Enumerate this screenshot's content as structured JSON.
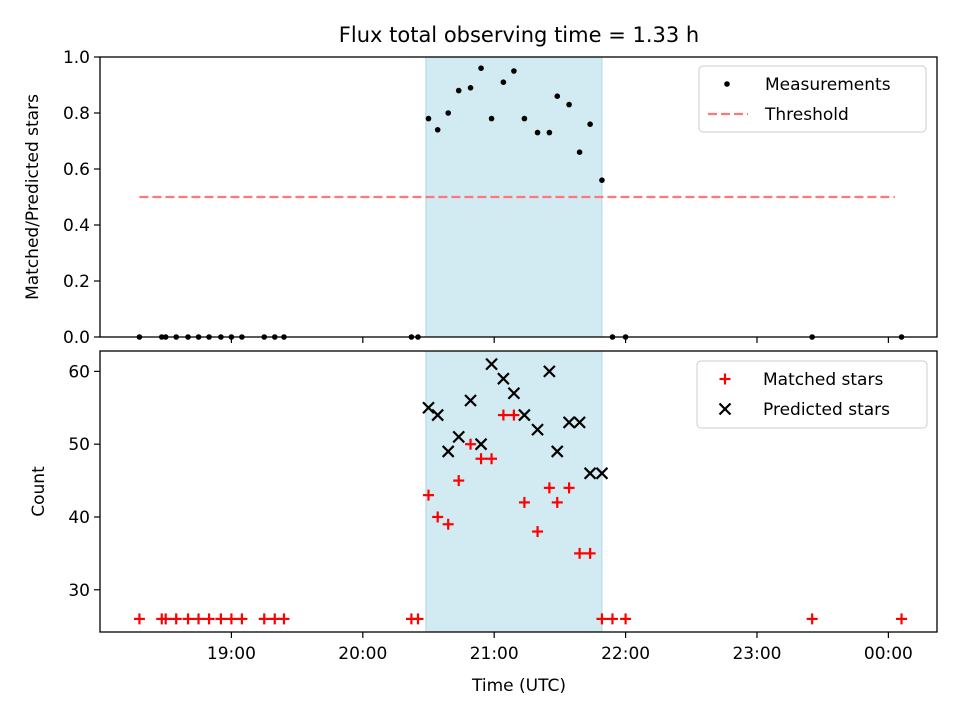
{
  "chart_data": {
    "title": "Flux total observing time = 1.33 h",
    "xlabel": "Time (UTC)",
    "x_ticks": [
      "19:00",
      "20:00",
      "21:00",
      "22:00",
      "23:00",
      "00:00"
    ],
    "x_tick_hours": [
      19,
      20,
      21,
      22,
      23,
      24
    ],
    "x_range_hours": [
      18.0,
      24.37
    ],
    "shaded_span_hours": [
      20.48,
      21.82
    ],
    "shaded_color": "#add8e6",
    "panels": [
      {
        "type": "scatter",
        "ylabel": "Matched/Predicted stars",
        "ylim": [
          0,
          1.0
        ],
        "y_ticks": [
          "0.0",
          "0.2",
          "0.4",
          "0.6",
          "0.8",
          "1.0"
        ],
        "y_tick_values": [
          0,
          0.2,
          0.4,
          0.6,
          0.8,
          1.0
        ],
        "legend_position": "top-right",
        "series": [
          {
            "name": "Measurements",
            "marker": "dot",
            "color": "#000000",
            "x": [
              18.3,
              18.47,
              18.5,
              18.58,
              18.67,
              18.75,
              18.83,
              18.92,
              19.0,
              19.08,
              19.25,
              19.33,
              19.4,
              20.37,
              20.42,
              20.5,
              20.57,
              20.65,
              20.73,
              20.82,
              20.9,
              20.98,
              21.07,
              21.15,
              21.23,
              21.33,
              21.42,
              21.48,
              21.57,
              21.65,
              21.73,
              21.82,
              21.9,
              22.0,
              23.42,
              24.1
            ],
            "y": [
              0,
              0,
              0,
              0,
              0,
              0,
              0,
              0,
              0,
              0,
              0,
              0,
              0,
              0,
              0,
              0.78,
              0.74,
              0.8,
              0.88,
              0.89,
              0.96,
              0.78,
              0.91,
              0.95,
              0.78,
              0.73,
              0.73,
              0.86,
              0.83,
              0.66,
              0.76,
              0.56,
              0,
              0,
              0,
              0
            ]
          },
          {
            "name": "Threshold",
            "marker": "dashed-line",
            "color": "#ff7777",
            "x": [
              18.3,
              24.05
            ],
            "y": [
              0.5,
              0.5
            ]
          }
        ]
      },
      {
        "type": "scatter",
        "ylabel": "Count",
        "ylim": [
          24.2,
          62.8
        ],
        "y_ticks": [
          "30",
          "40",
          "50",
          "60"
        ],
        "y_tick_values": [
          30,
          40,
          50,
          60
        ],
        "legend_position": "top-right",
        "series": [
          {
            "name": "Matched stars",
            "marker": "plus",
            "color": "#ff0000",
            "x": [
              18.3,
              18.47,
              18.5,
              18.58,
              18.67,
              18.75,
              18.83,
              18.92,
              19.0,
              19.08,
              19.25,
              19.33,
              19.4,
              20.37,
              20.42,
              20.5,
              20.57,
              20.65,
              20.73,
              20.82,
              20.9,
              20.98,
              21.07,
              21.15,
              21.23,
              21.33,
              21.42,
              21.48,
              21.57,
              21.65,
              21.73,
              21.82,
              21.9,
              22.0,
              23.42,
              24.1
            ],
            "y": [
              26,
              26,
              26,
              26,
              26,
              26,
              26,
              26,
              26,
              26,
              26,
              26,
              26,
              26,
              26,
              43,
              40,
              39,
              45,
              50,
              48,
              48,
              54,
              54,
              42,
              38,
              44,
              42,
              44,
              35,
              35,
              26,
              26,
              26,
              26,
              26
            ]
          },
          {
            "name": "Predicted stars",
            "marker": "x",
            "color": "#000000",
            "x": [
              20.5,
              20.57,
              20.65,
              20.73,
              20.82,
              20.9,
              20.98,
              21.07,
              21.15,
              21.23,
              21.33,
              21.42,
              21.48,
              21.57,
              21.65,
              21.73,
              21.82
            ],
            "y": [
              55,
              54,
              49,
              51,
              56,
              50,
              61,
              59,
              57,
              54,
              52,
              60,
              49,
              53,
              53,
              46,
              46
            ]
          }
        ]
      }
    ]
  }
}
